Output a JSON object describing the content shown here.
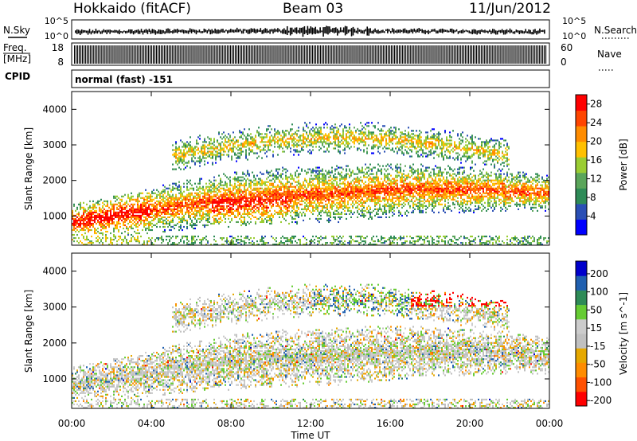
{
  "header": {
    "station": "Hokkaido (fitACF)",
    "beam": "Beam 03",
    "date": "11/Jun/2012"
  },
  "noise_panel": {
    "left_label": "N.Sky",
    "right_label": "N.Search",
    "top_tick": "10^5",
    "bottom_tick": "10^0",
    "right_top_tick": "10^5",
    "right_bottom_tick": "10^0"
  },
  "freq_panel": {
    "left_label_1": "Freq.",
    "left_label_2": "[MHz]",
    "left_top_tick": "18",
    "left_bottom_tick": "8",
    "right_label": "Nave",
    "right_top_tick": "60",
    "right_bottom_tick": "0"
  },
  "cpid": {
    "label": "CPID",
    "value": "normal (fast) -151"
  },
  "colors": {
    "power": [
      "#0000ff",
      "#2a4fb5",
      "#2e8b57",
      "#5aa55a",
      "#9acd32",
      "#ffc000",
      "#ff8c00",
      "#ff4500",
      "#ff0000"
    ],
    "velocity": [
      "#ff0000",
      "#ff5000",
      "#ff8c00",
      "#e6a800",
      "#c0c0c0",
      "#cccccc",
      "#66cc33",
      "#2e8b57",
      "#2060b0",
      "#0000cc"
    ]
  },
  "chart_data": [
    {
      "type": "heatmap",
      "title": "Power",
      "ylabel": "Slant Range [km]",
      "xlabel": "Time UT",
      "x_ticks": [
        "00:00",
        "04:00",
        "08:00",
        "12:00",
        "16:00",
        "20:00",
        "00:00"
      ],
      "y_ticks": [
        1000,
        2000,
        3000,
        4000
      ],
      "ylim": [
        180,
        4500
      ],
      "xlim_hours": [
        0,
        24
      ],
      "colorbar_label": "Power [dB]",
      "colorbar_ticks": [
        4,
        8,
        12,
        16,
        20,
        24,
        28
      ],
      "colorbar_range": [
        0,
        30
      ]
    },
    {
      "type": "heatmap",
      "title": "Velocity",
      "ylabel": "Slant Range [km]",
      "xlabel": "Time UT",
      "x_ticks": [
        "00:00",
        "04:00",
        "08:00",
        "12:00",
        "16:00",
        "20:00",
        "00:00"
      ],
      "y_ticks": [
        1000,
        2000,
        3000,
        4000
      ],
      "ylim": [
        180,
        4500
      ],
      "xlim_hours": [
        0,
        24
      ],
      "colorbar_label": "Velocity [m s^-1]",
      "colorbar_ticks": [
        200,
        100,
        50,
        15,
        -15,
        -50,
        -100,
        -200
      ]
    }
  ],
  "axis": {
    "xlabel": "Time UT"
  }
}
